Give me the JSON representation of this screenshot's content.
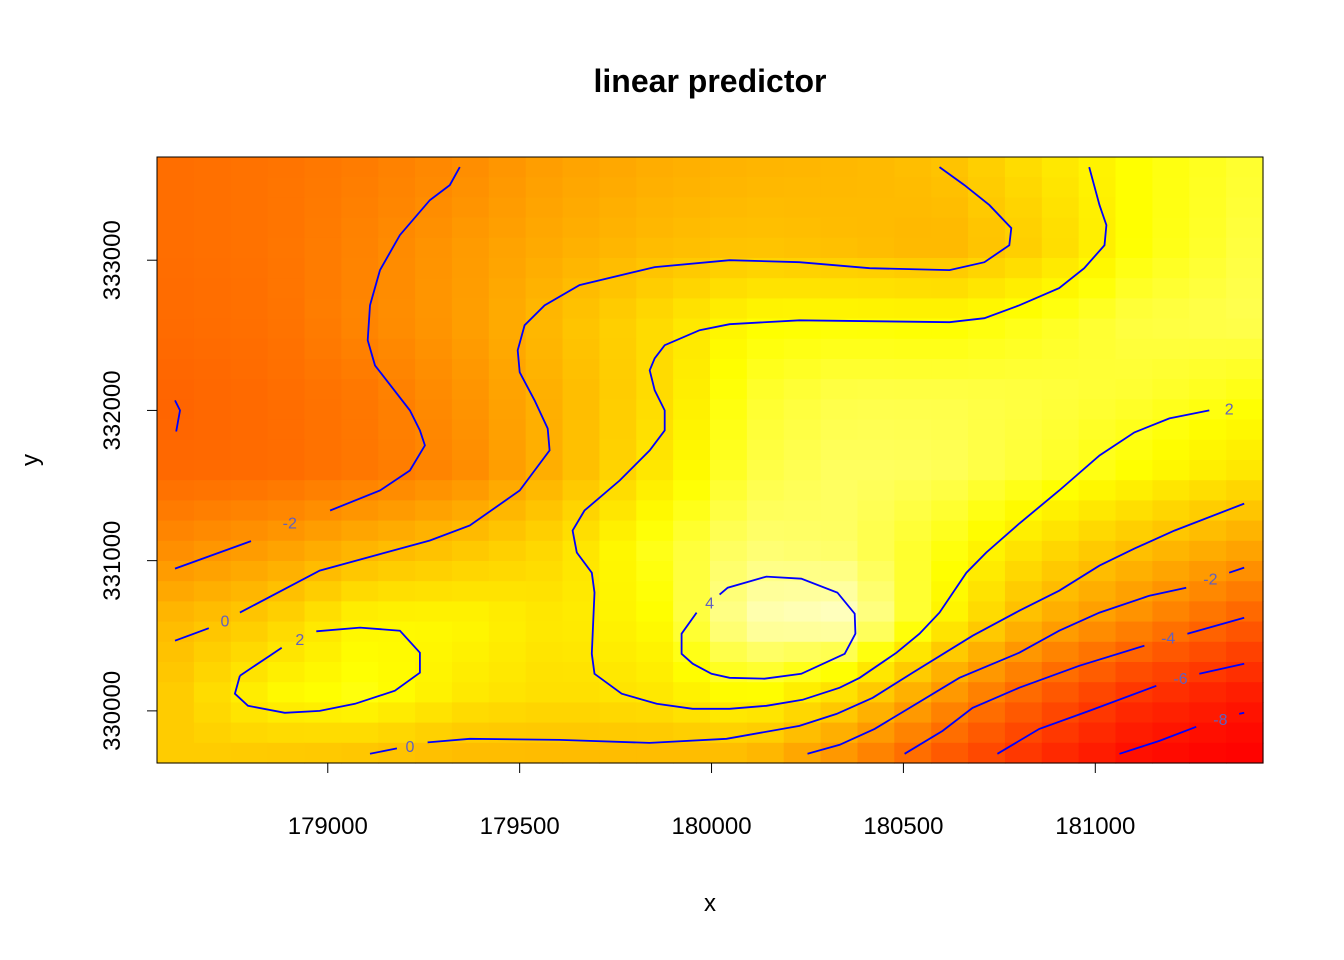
{
  "chart_data": {
    "type": "heatmap",
    "title": "linear predictor",
    "xlabel": "x",
    "ylabel": "y",
    "xlim": [
      178555,
      181437
    ],
    "ylim": [
      329653,
      333687
    ],
    "x_ticks": [
      179000,
      179500,
      180000,
      180500,
      181000
    ],
    "x_tick_labels": [
      "179000",
      "179500",
      "180000",
      "180500",
      "181000"
    ],
    "y_ticks": [
      330000,
      331000,
      332000,
      333000
    ],
    "y_tick_labels": [
      "330000",
      "331000",
      "332000",
      "333000"
    ],
    "colormap": "heat (red → orange → yellow → white)",
    "contour_color": "#0000ff",
    "contour_label_color": "#6060c0",
    "grid": {
      "x": [
        178600,
        178850,
        179100,
        179350,
        179600,
        179850,
        180100,
        180350,
        180600,
        180850,
        181100,
        181400
      ],
      "y": [
        333600,
        333100,
        332600,
        332100,
        331600,
        331100,
        330600,
        330100,
        329700
      ],
      "z": [
        [
          -3.2,
          -3.0,
          -2.6,
          -2.0,
          -1.2,
          -0.8,
          -0.5,
          -0.4,
          -0.1,
          1.0,
          2.0,
          2.6
        ],
        [
          -3.2,
          -3.0,
          -2.3,
          -1.5,
          -0.8,
          -0.3,
          0.0,
          -0.2,
          -0.5,
          0.5,
          2.0,
          2.8
        ],
        [
          -3.3,
          -3.1,
          -2.2,
          -1.4,
          -0.2,
          0.8,
          1.9,
          2.0,
          1.9,
          2.3,
          2.8,
          3.0
        ],
        [
          -3.6,
          -3.3,
          -2.8,
          -1.8,
          -0.5,
          0.8,
          2.5,
          2.9,
          2.9,
          2.8,
          2.6,
          2.2
        ],
        [
          -3.4,
          -3.3,
          -2.8,
          -2.1,
          -0.5,
          1.2,
          2.8,
          3.2,
          3.1,
          2.6,
          2.0,
          1.2
        ],
        [
          -2.0,
          -1.4,
          -0.6,
          0.0,
          0.8,
          2.3,
          3.4,
          3.2,
          2.3,
          1.0,
          0.0,
          -1.0
        ],
        [
          -0.3,
          0.4,
          1.8,
          1.8,
          1.2,
          1.9,
          4.2,
          4.5,
          1.8,
          -0.6,
          -2.0,
          -3.8
        ],
        [
          0.3,
          1.8,
          2.2,
          1.3,
          0.9,
          1.2,
          2.0,
          0.8,
          -1.5,
          -3.8,
          -5.8,
          -7.2
        ],
        [
          0.3,
          0.2,
          0.0,
          -0.3,
          -0.3,
          -0.3,
          -0.3,
          -1.8,
          -4.0,
          -6.0,
          -8.0,
          -9.2
        ]
      ],
      "zlim": [
        -9.5,
        5.0
      ]
    },
    "contours": [
      {
        "level": -2,
        "paths": [
          [
            [
              178602,
              330947
            ],
            [
              178800,
              331130
            ]
          ],
          [
            [
              179006,
              331334
            ],
            [
              179136,
              331467
            ],
            [
              179214,
              331600
            ],
            [
              179253,
              331767
            ],
            [
              179240,
              331867
            ],
            [
              179214,
              332000
            ],
            [
              179123,
              332300
            ],
            [
              179104,
              332467
            ],
            [
              179110,
              332700
            ],
            [
              179136,
              332934
            ],
            [
              179188,
              333167
            ],
            [
              179266,
              333400
            ],
            [
              179318,
              333500
            ],
            [
              179344,
              333620
            ]
          ]
        ]
      },
      {
        "level": -4,
        "paths": [
          [
            [
              178602,
              332067
            ],
            [
              178615,
              332000
            ],
            [
              178605,
              331860
            ]
          ]
        ]
      },
      {
        "level": 0,
        "paths": [
          [
            [
              178602,
              330467
            ],
            [
              178690,
              330550
            ]
          ],
          [
            [
              178771,
              330654
            ],
            [
              178979,
              330934
            ],
            [
              179266,
              331134
            ],
            [
              179370,
              331234
            ],
            [
              179500,
              331467
            ],
            [
              179578,
              331734
            ],
            [
              179573,
              331880
            ],
            [
              179539,
              332067
            ],
            [
              179500,
              332254
            ],
            [
              179495,
              332400
            ],
            [
              179513,
              332567
            ],
            [
              179565,
              332700
            ],
            [
              179656,
              332834
            ],
            [
              179852,
              332954
            ],
            [
              180047,
              333000
            ],
            [
              180229,
              332987
            ],
            [
              180412,
              332947
            ],
            [
              180620,
              332934
            ],
            [
              180711,
              332987
            ],
            [
              180776,
              333100
            ],
            [
              180781,
              333214
            ],
            [
              180724,
              333367
            ],
            [
              180659,
              333500
            ],
            [
              180594,
              333620
            ]
          ],
          [
            [
              179110,
              329714
            ],
            [
              179180,
              329750
            ]
          ],
          [
            [
              179260,
              329790
            ],
            [
              179370,
              329814
            ],
            [
              179604,
              329807
            ],
            [
              179839,
              329787
            ],
            [
              180039,
              329814
            ],
            [
              180229,
              329900
            ],
            [
              180326,
              329980
            ],
            [
              180420,
              330087
            ],
            [
              180524,
              330254
            ],
            [
              180680,
              330500
            ],
            [
              180802,
              330667
            ],
            [
              180906,
              330800
            ],
            [
              181011,
              330967
            ],
            [
              181102,
              331080
            ],
            [
              181206,
              331200
            ],
            [
              181388,
              331380
            ]
          ]
        ]
      },
      {
        "level": 2,
        "paths": [
          [
            [
              180984,
              333620
            ],
            [
              181011,
              333367
            ],
            [
              181029,
              333234
            ],
            [
              181024,
              333100
            ],
            [
              180971,
              332947
            ],
            [
              180906,
              332814
            ],
            [
              180802,
              332700
            ],
            [
              180711,
              332614
            ],
            [
              180620,
              332587
            ],
            [
              180412,
              332594
            ],
            [
              180229,
              332600
            ],
            [
              180047,
              332574
            ],
            [
              179969,
              332534
            ],
            [
              179878,
              332434
            ],
            [
              179852,
              332347
            ],
            [
              179839,
              332267
            ],
            [
              179852,
              332134
            ],
            [
              179878,
              332000
            ],
            [
              179878,
              331867
            ],
            [
              179839,
              331734
            ],
            [
              179761,
              331534
            ],
            [
              179669,
              331334
            ],
            [
              179638,
              331200
            ],
            [
              179649,
              331054
            ],
            [
              179688,
              330920
            ],
            [
              179695,
              330787
            ],
            [
              179688,
              330380
            ],
            [
              179695,
              330247
            ],
            [
              179766,
              330114
            ],
            [
              179857,
              330047
            ],
            [
              179951,
              330014
            ],
            [
              180047,
              330014
            ],
            [
              180143,
              330034
            ],
            [
              180237,
              330074
            ],
            [
              180334,
              330154
            ],
            [
              180386,
              330220
            ],
            [
              180482,
              330387
            ],
            [
              180542,
              330514
            ],
            [
              180594,
              330654
            ],
            [
              180664,
              330920
            ],
            [
              180716,
              331054
            ],
            [
              180802,
              331247
            ],
            [
              180906,
              331467
            ],
            [
              181011,
              331700
            ],
            [
              181102,
              331854
            ],
            [
              181193,
              331947
            ],
            [
              181297,
              332000
            ]
          ],
          [
            [
              178771,
              330234
            ],
            [
              178849,
              330367
            ],
            [
              178880,
              330420
            ]
          ],
          [
            [
              178970,
              330530
            ],
            [
              179084,
              330554
            ],
            [
              179188,
              330534
            ],
            [
              179240,
              330387
            ],
            [
              179240,
              330254
            ],
            [
              179175,
              330134
            ],
            [
              179071,
              330047
            ],
            [
              178979,
              330000
            ],
            [
              178888,
              329987
            ],
            [
              178792,
              330034
            ],
            [
              178758,
              330114
            ],
            [
              178771,
              330234
            ]
          ]
        ]
      },
      {
        "level": 4,
        "paths": [
          [
            [
              179961,
              330654
            ],
            [
              179922,
              330514
            ],
            [
              179922,
              330380
            ],
            [
              179951,
              330314
            ],
            [
              180000,
              330247
            ],
            [
              180047,
              330220
            ],
            [
              180138,
              330214
            ],
            [
              180234,
              330247
            ],
            [
              180347,
              330380
            ],
            [
              180375,
              330514
            ],
            [
              180373,
              330647
            ],
            [
              180328,
              330787
            ],
            [
              180234,
              330880
            ],
            [
              180143,
              330894
            ],
            [
              180042,
              330820
            ],
            [
              180021,
              330774
            ]
          ]
        ]
      },
      {
        "level": -2,
        "paths": [
          [
            [
              180250,
              329714
            ],
            [
              180334,
              329774
            ],
            [
              180425,
              329880
            ],
            [
              180516,
              330020
            ],
            [
              180646,
              330220
            ],
            [
              180802,
              330387
            ],
            [
              180906,
              330534
            ],
            [
              181011,
              330654
            ],
            [
              181141,
              330767
            ],
            [
              181237,
              330820
            ]
          ],
          [
            [
              181349,
              330920
            ],
            [
              181388,
              330954
            ]
          ]
        ]
      },
      {
        "level": -4,
        "paths": [
          [
            [
              180503,
              329714
            ],
            [
              180602,
              329867
            ],
            [
              180680,
              330020
            ],
            [
              180802,
              330154
            ],
            [
              180958,
              330300
            ],
            [
              181128,
              330434
            ]
          ],
          [
            [
              181240,
              330514
            ],
            [
              181388,
              330620
            ]
          ]
        ]
      },
      {
        "level": -6,
        "paths": [
          [
            [
              180745,
              329714
            ],
            [
              180854,
              329880
            ],
            [
              180984,
              330000
            ],
            [
              181159,
              330167
            ]
          ],
          [
            [
              181271,
              330247
            ],
            [
              181388,
              330314
            ]
          ]
        ]
      },
      {
        "level": -8,
        "paths": [
          [
            [
              181063,
              329714
            ],
            [
              181167,
              329800
            ],
            [
              181263,
              329894
            ]
          ],
          [
            [
              181375,
              329980
            ],
            [
              181388,
              329987
            ]
          ]
        ]
      }
    ],
    "contour_labels": [
      {
        "text": "-2",
        "at": [
          178901,
          331254
        ]
      },
      {
        "text": "0",
        "at": [
          178732,
          330600
        ]
      },
      {
        "text": "2",
        "at": [
          178927,
          330480
        ]
      },
      {
        "text": "4",
        "at": [
          179995,
          330720
        ]
      },
      {
        "text": "2",
        "at": [
          181349,
          332014
        ]
      },
      {
        "text": "0",
        "at": [
          179214,
          329767
        ]
      },
      {
        "text": "-2",
        "at": [
          181300,
          330880
        ]
      },
      {
        "text": "-4",
        "at": [
          181190,
          330487
        ]
      },
      {
        "text": "-6",
        "at": [
          181222,
          330220
        ]
      },
      {
        "text": "-8",
        "at": [
          181326,
          329947
        ]
      }
    ]
  }
}
